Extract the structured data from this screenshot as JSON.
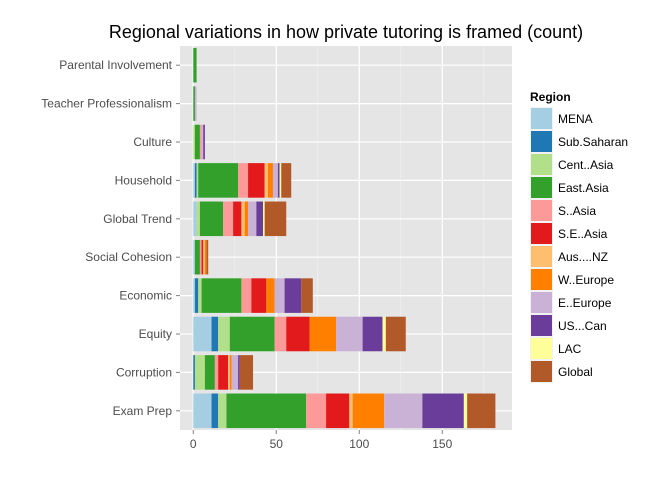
{
  "chart_data": {
    "type": "bar",
    "orientation": "horizontal",
    "stacked": true,
    "title": "Regional variations in how private tutoring is framed (count)",
    "xlabel": "",
    "ylabel": "",
    "xlim": [
      -8,
      192
    ],
    "x_ticks": [
      0,
      50,
      100,
      150
    ],
    "grid": true,
    "legend_position": "right",
    "legend_title": "Region",
    "categories": [
      "Parental Involvement",
      "Teacher Professionalism",
      "Culture",
      "Household",
      "Global Trend",
      "Social Cohesion",
      "Economic",
      "Equity",
      "Corruption",
      "Exam Prep"
    ],
    "series": [
      {
        "name": "MENA",
        "color": "#A6CEE3",
        "values": [
          0,
          0,
          0,
          1,
          2,
          1,
          1,
          11,
          0,
          11
        ]
      },
      {
        "name": "Sub.Saharan",
        "color": "#1F78B4",
        "values": [
          0,
          0,
          0,
          1,
          0,
          0,
          2,
          4,
          1,
          4
        ]
      },
      {
        "name": "Cent..Asia",
        "color": "#B2DF8A",
        "values": [
          0,
          0,
          1,
          1,
          2,
          0,
          2,
          7,
          6,
          5
        ]
      },
      {
        "name": "East.Asia",
        "color": "#33A02C",
        "values": [
          2,
          1,
          3,
          24,
          14,
          3,
          24,
          27,
          6,
          48
        ]
      },
      {
        "name": "S..Asia",
        "color": "#FB9A99",
        "values": [
          0,
          0,
          1,
          6,
          6,
          1,
          6,
          7,
          2,
          12
        ]
      },
      {
        "name": "S.E..Asia",
        "color": "#E31A1C",
        "values": [
          0,
          0,
          0,
          10,
          5,
          1,
          9,
          14,
          6,
          14
        ]
      },
      {
        "name": "Aus....NZ",
        "color": "#FDBF6F",
        "values": [
          0,
          0,
          0,
          2,
          2,
          1,
          0,
          0,
          1,
          2
        ]
      },
      {
        "name": "W..Europe",
        "color": "#FF7F00",
        "values": [
          0,
          0,
          0,
          3,
          2,
          1,
          5,
          16,
          1,
          19
        ]
      },
      {
        "name": "E..Europe",
        "color": "#CAB2D6",
        "values": [
          0,
          1,
          1,
          3,
          5,
          0,
          6,
          16,
          4,
          23
        ]
      },
      {
        "name": "US...Can",
        "color": "#6A3D9A",
        "values": [
          0,
          0,
          1,
          1,
          4,
          0,
          10,
          12,
          1,
          25
        ]
      },
      {
        "name": "LAC",
        "color": "#FFFF99",
        "values": [
          0,
          0,
          0,
          1,
          1,
          0,
          0,
          2,
          0,
          2
        ]
      },
      {
        "name": "Global",
        "color": "#B15928",
        "values": [
          0,
          0,
          0,
          6,
          13,
          1,
          7,
          12,
          8,
          17
        ]
      }
    ]
  }
}
